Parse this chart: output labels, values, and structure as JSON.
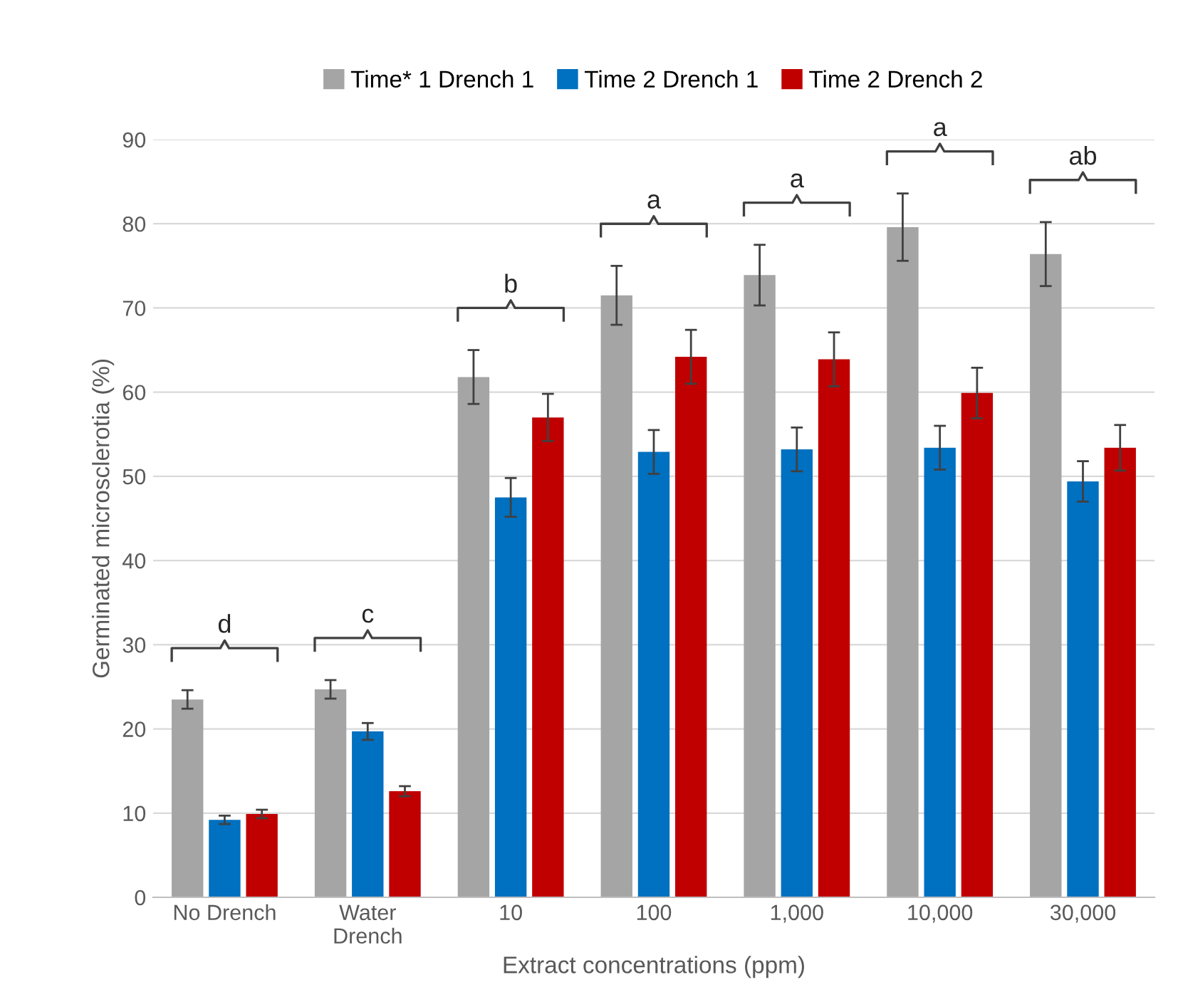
{
  "chart_data": {
    "type": "bar",
    "xlabel": "Extract concentrations (ppm)",
    "ylabel": "Germinated microsclerotia (%)",
    "categories": [
      "No Drench",
      "Water\nDrench",
      "10",
      "100",
      "1,000",
      "10,000",
      "30,000"
    ],
    "series": [
      {
        "name": "Time* 1 Drench 1",
        "color": "#a5a5a5",
        "values": [
          23.5,
          24.7,
          61.8,
          71.5,
          73.9,
          79.6,
          76.4
        ],
        "errors": [
          1.1,
          1.1,
          3.2,
          3.5,
          3.6,
          4.0,
          3.8
        ]
      },
      {
        "name": "Time 2 Drench 1",
        "color": "#0070c0",
        "values": [
          9.2,
          19.7,
          47.5,
          52.9,
          53.2,
          53.4,
          49.4
        ],
        "errors": [
          0.5,
          1.0,
          2.3,
          2.6,
          2.6,
          2.6,
          2.4
        ]
      },
      {
        "name": "Time 2 Drench 2",
        "color": "#c00000",
        "values": [
          9.9,
          12.6,
          57.0,
          64.2,
          63.9,
          59.9,
          53.4
        ],
        "errors": [
          0.5,
          0.6,
          2.8,
          3.2,
          3.2,
          3.0,
          2.7
        ]
      }
    ],
    "annotations": [
      "d",
      "c",
      "b",
      "a",
      "a",
      "a",
      "ab"
    ],
    "ylim": [
      0,
      90
    ],
    "yticks": [
      0,
      10,
      20,
      30,
      40,
      50,
      60,
      70,
      80,
      90
    ],
    "grid": "y",
    "legend": "top"
  }
}
